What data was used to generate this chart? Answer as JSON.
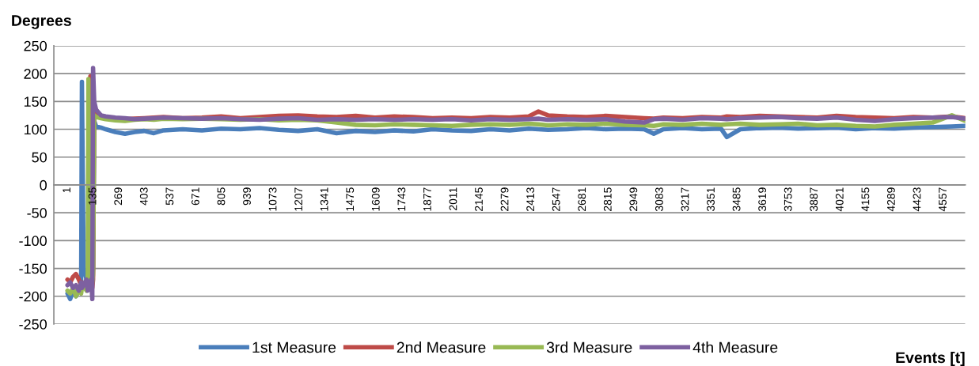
{
  "chart_data": {
    "type": "line",
    "ylabel": "Degrees",
    "xlabel": "Events [t]",
    "x": [
      1,
      15,
      30,
      45,
      60,
      72,
      76,
      85,
      100,
      106,
      110,
      116,
      120,
      124,
      130,
      134,
      140,
      150,
      175,
      200,
      250,
      300,
      350,
      400,
      450,
      500,
      600,
      700,
      800,
      900,
      1000,
      1100,
      1200,
      1300,
      1400,
      1500,
      1600,
      1700,
      1800,
      1900,
      2000,
      2100,
      2200,
      2300,
      2400,
      2450,
      2500,
      2600,
      2700,
      2800,
      2900,
      3000,
      3050,
      3100,
      3200,
      3300,
      3400,
      3430,
      3500,
      3600,
      3700,
      3800,
      3900,
      4000,
      4100,
      4200,
      4300,
      4400,
      4500,
      4600,
      4670
    ],
    "series": [
      {
        "name": "1st Measure",
        "color": "#4a7ebb",
        "values": [
          -195,
          -205,
          -190,
          -200,
          -185,
          -180,
          185,
          -150,
          -170,
          -180,
          -175,
          -165,
          -180,
          -175,
          -170,
          -150,
          115,
          105,
          103,
          100,
          95,
          92,
          95,
          97,
          93,
          98,
          100,
          98,
          101,
          100,
          102,
          99,
          97,
          100,
          93,
          97,
          95,
          98,
          96,
          100,
          98,
          97,
          100,
          98,
          101,
          100,
          99,
          100,
          102,
          100,
          101,
          100,
          92,
          100,
          102,
          100,
          101,
          86,
          100,
          102,
          103,
          101,
          102,
          103,
          100,
          102,
          101,
          103,
          104,
          105,
          106
        ]
      },
      {
        "name": "2nd Measure",
        "color": "#be4b48",
        "values": [
          -170,
          -175,
          -165,
          -160,
          -170,
          -180,
          -175,
          -185,
          -180,
          -170,
          -175,
          -180,
          195,
          -175,
          -185,
          -170,
          130,
          125,
          122,
          120,
          119,
          118,
          119,
          120,
          121,
          122,
          120,
          121,
          123,
          120,
          122,
          124,
          125,
          123,
          122,
          124,
          121,
          123,
          122,
          120,
          121,
          120,
          122,
          121,
          123,
          132,
          125,
          123,
          122,
          124,
          122,
          120,
          119,
          121,
          120,
          122,
          121,
          123,
          122,
          124,
          123,
          122,
          121,
          124,
          122,
          121,
          120,
          122,
          121,
          123,
          120
        ]
      },
      {
        "name": "3rd Measure",
        "color": "#98b954",
        "values": [
          -190,
          -195,
          -185,
          -200,
          -190,
          -195,
          -185,
          -180,
          -190,
          -185,
          190,
          -170,
          -180,
          -185,
          -175,
          -160,
          125,
          122,
          120,
          118,
          116,
          115,
          117,
          118,
          117,
          119,
          118,
          119,
          118,
          117,
          118,
          116,
          117,
          116,
          112,
          108,
          107,
          109,
          108,
          107,
          106,
          108,
          109,
          108,
          110,
          109,
          107,
          109,
          108,
          110,
          108,
          107,
          106,
          109,
          108,
          110,
          108,
          109,
          110,
          108,
          109,
          110,
          107,
          108,
          106,
          105,
          108,
          110,
          112,
          125,
          115
        ]
      },
      {
        "name": "4th Measure",
        "color": "#7d60a0",
        "values": [
          -180,
          -175,
          -185,
          -180,
          -190,
          -175,
          -185,
          -180,
          -170,
          -190,
          -180,
          -175,
          -185,
          -170,
          -205,
          210,
          150,
          135,
          125,
          123,
          121,
          120,
          118,
          119,
          120,
          121,
          120,
          119,
          120,
          118,
          117,
          119,
          120,
          117,
          118,
          117,
          118,
          117,
          118,
          117,
          118,
          116,
          118,
          117,
          118,
          119,
          117,
          118,
          117,
          118,
          114,
          112,
          118,
          119,
          117,
          120,
          119,
          118,
          120,
          121,
          122,
          120,
          119,
          121,
          117,
          115,
          118,
          120,
          121,
          122,
          119
        ]
      }
    ],
    "xlim": [
      -70,
      4670
    ],
    "xticks": [
      1,
      135,
      269,
      403,
      537,
      671,
      805,
      939,
      1073,
      1207,
      1341,
      1475,
      1609,
      1743,
      1877,
      2011,
      2145,
      2279,
      2413,
      2547,
      2681,
      2815,
      2949,
      3083,
      3217,
      3351,
      3485,
      3619,
      3753,
      3887,
      4021,
      4155,
      4289,
      4423,
      4557
    ],
    "ylim": [
      -250,
      250
    ],
    "yticks": [
      -250,
      -200,
      -150,
      -100,
      -50,
      0,
      50,
      100,
      150,
      200,
      250
    ],
    "grid": "y",
    "legend": "bottom",
    "line_style": "solid"
  }
}
